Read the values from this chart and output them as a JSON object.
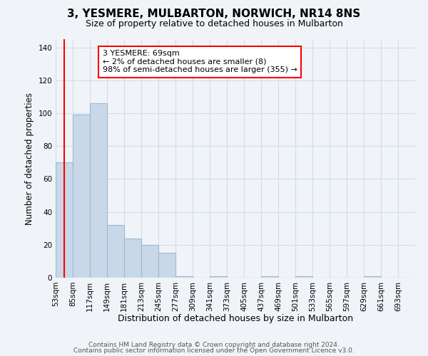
{
  "title": "3, YESMERE, MULBARTON, NORWICH, NR14 8NS",
  "subtitle": "Size of property relative to detached houses in Mulbarton",
  "xlabel": "Distribution of detached houses by size in Mulbarton",
  "ylabel": "Number of detached properties",
  "bar_edges": [
    53,
    85,
    117,
    149,
    181,
    213,
    245,
    277,
    309,
    341,
    373,
    405,
    437,
    469,
    501,
    533,
    565,
    597,
    629,
    661,
    693,
    725
  ],
  "bar_heights": [
    70,
    99,
    106,
    32,
    24,
    20,
    15,
    1,
    0,
    1,
    0,
    0,
    1,
    0,
    1,
    0,
    0,
    0,
    1,
    0,
    0
  ],
  "bar_color": "#c8d8e8",
  "bar_edgecolor": "#a0b8d0",
  "bar_linewidth": 0.8,
  "grid_color": "#d0dde8",
  "bg_color": "#f0f4f8",
  "red_line_x": 69,
  "annotation_box_text": "3 YESMERE: 69sqm\n← 2% of detached houses are smaller (8)\n98% of semi-detached houses are larger (355) →",
  "ylim": [
    0,
    145
  ],
  "yticks": [
    0,
    20,
    40,
    60,
    80,
    100,
    120,
    140
  ],
  "footer_line1": "Contains HM Land Registry data © Crown copyright and database right 2024.",
  "footer_line2": "Contains public sector information licensed under the Open Government Licence v3.0.",
  "title_fontsize": 11,
  "subtitle_fontsize": 9,
  "xlabel_fontsize": 9,
  "ylabel_fontsize": 8.5,
  "tick_fontsize": 7.5,
  "footer_fontsize": 6.5,
  "annot_fontsize": 8
}
